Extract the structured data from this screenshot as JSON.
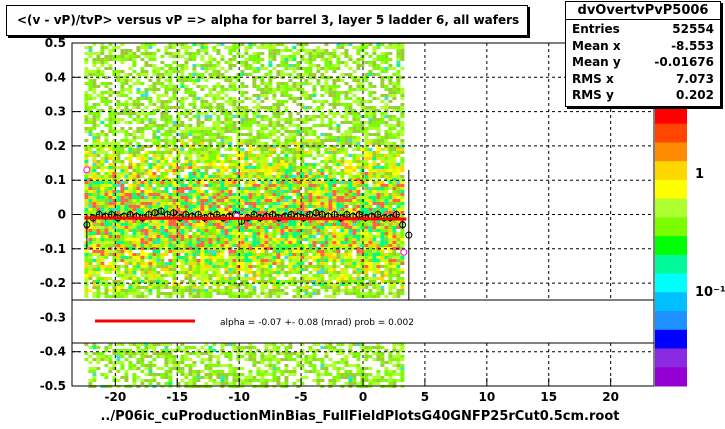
{
  "title": "<(v - vP)/tvP> versus   vP => alpha for barrel 3, layer 5 ladder 6, all wafers",
  "xlabel": "../P06ic_cuProductionMinBias_FullFieldPlotsG40GNFP25rCut0.5cm.root",
  "stats": {
    "name": "dvOvertvPvP5006",
    "rows": [
      {
        "key": "Entries",
        "value": "52554"
      },
      {
        "key": "Mean x",
        "value": "-8.553"
      },
      {
        "key": "Mean y",
        "value": "-0.01676"
      },
      {
        "key": "RMS x",
        "value": "7.073"
      },
      {
        "key": "RMS y",
        "value": "0.202"
      }
    ]
  },
  "legend": {
    "fit_text": "alpha =   -0.07 +-  0.08 (mrad) prob = 0.002",
    "line_color": "#ff0000"
  },
  "chart_data": {
    "type": "heatmap",
    "xlim": [
      -23.5,
      23.5
    ],
    "ylim": [
      -0.5,
      0.5
    ],
    "xticks": [
      -20,
      -15,
      -10,
      -5,
      0,
      5,
      10,
      15,
      20
    ],
    "yticks": [
      -0.5,
      -0.4,
      -0.3,
      -0.2,
      -0.1,
      0,
      0.1,
      0.2,
      0.3,
      0.4,
      0.5
    ],
    "grid": true,
    "heatmap_region": {
      "x": [
        -22.5,
        3.3
      ],
      "y": [
        -0.5,
        0.5
      ]
    },
    "colorbar_labels": [
      "1",
      "10⁻¹"
    ],
    "profile": {
      "x": [
        -22.3,
        -21.8,
        -21.3,
        -20.8,
        -20.3,
        -19.8,
        -19.3,
        -18.8,
        -18.3,
        -17.8,
        -17.3,
        -16.8,
        -16.3,
        -15.8,
        -15.3,
        -14.8,
        -14.3,
        -13.8,
        -13.3,
        -12.8,
        -12.3,
        -11.8,
        -11.3,
        -10.8,
        -10.3,
        -9.8,
        -9.3,
        -8.8,
        -8.3,
        -7.8,
        -7.3,
        -6.8,
        -6.3,
        -5.8,
        -5.3,
        -4.8,
        -4.3,
        -3.8,
        -3.3,
        -2.8,
        -2.3,
        -1.8,
        -1.3,
        -0.8,
        -0.3,
        0.2,
        0.7,
        1.2,
        1.7,
        2.2,
        2.7,
        3.2,
        3.7
      ],
      "y": [
        -0.03,
        -0.01,
        0.0,
        -0.005,
        0.0,
        -0.01,
        -0.005,
        0.0,
        -0.005,
        -0.01,
        0.0,
        0.005,
        0.01,
        0.0,
        0.005,
        -0.01,
        0.0,
        -0.005,
        0.0,
        -0.01,
        -0.005,
        0.0,
        -0.01,
        -0.005,
        0.0,
        -0.02,
        -0.01,
        0.0,
        -0.01,
        -0.005,
        0.0,
        -0.01,
        -0.005,
        0.0,
        -0.005,
        -0.01,
        0.0,
        0.005,
        0.0,
        -0.005,
        0.0,
        -0.01,
        0.0,
        -0.005,
        0.0,
        -0.01,
        -0.005,
        0.0,
        -0.01,
        -0.01,
        0.0,
        -0.03,
        -0.06
      ],
      "outliers": [
        {
          "x": -22.3,
          "y": 0.13
        },
        {
          "x": -10.2,
          "y": -0.005
        },
        {
          "x": 3.3,
          "y": -0.11
        }
      ]
    },
    "fit": {
      "type": "line",
      "x": [
        -22.5,
        3.5
      ],
      "y": [
        -0.01,
        -0.013
      ],
      "color": "#ff0000"
    }
  }
}
